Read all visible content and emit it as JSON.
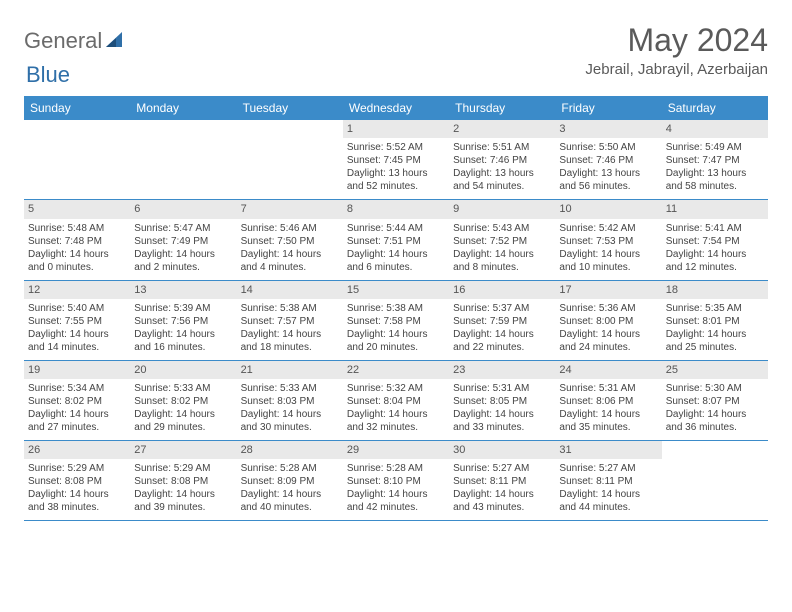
{
  "logo": {
    "word1": "General",
    "word2": "Blue"
  },
  "title": "May 2024",
  "location": "Jebrail, Jabrayil, Azerbaijan",
  "day_names": [
    "Sunday",
    "Monday",
    "Tuesday",
    "Wednesday",
    "Thursday",
    "Friday",
    "Saturday"
  ],
  "colors": {
    "header_bg": "#3b8bc9",
    "header_text": "#ffffff",
    "rule": "#3b8bc9",
    "daynum_bg": "#e9e9e9",
    "text": "#444444",
    "title_text": "#5a5a5a",
    "logo_text": "#6b6b6b"
  },
  "weeks": [
    [
      null,
      null,
      null,
      {
        "n": "1",
        "sr": "Sunrise: 5:52 AM",
        "ss": "Sunset: 7:45 PM",
        "d1": "Daylight: 13 hours",
        "d2": "and 52 minutes."
      },
      {
        "n": "2",
        "sr": "Sunrise: 5:51 AM",
        "ss": "Sunset: 7:46 PM",
        "d1": "Daylight: 13 hours",
        "d2": "and 54 minutes."
      },
      {
        "n": "3",
        "sr": "Sunrise: 5:50 AM",
        "ss": "Sunset: 7:46 PM",
        "d1": "Daylight: 13 hours",
        "d2": "and 56 minutes."
      },
      {
        "n": "4",
        "sr": "Sunrise: 5:49 AM",
        "ss": "Sunset: 7:47 PM",
        "d1": "Daylight: 13 hours",
        "d2": "and 58 minutes."
      }
    ],
    [
      {
        "n": "5",
        "sr": "Sunrise: 5:48 AM",
        "ss": "Sunset: 7:48 PM",
        "d1": "Daylight: 14 hours",
        "d2": "and 0 minutes."
      },
      {
        "n": "6",
        "sr": "Sunrise: 5:47 AM",
        "ss": "Sunset: 7:49 PM",
        "d1": "Daylight: 14 hours",
        "d2": "and 2 minutes."
      },
      {
        "n": "7",
        "sr": "Sunrise: 5:46 AM",
        "ss": "Sunset: 7:50 PM",
        "d1": "Daylight: 14 hours",
        "d2": "and 4 minutes."
      },
      {
        "n": "8",
        "sr": "Sunrise: 5:44 AM",
        "ss": "Sunset: 7:51 PM",
        "d1": "Daylight: 14 hours",
        "d2": "and 6 minutes."
      },
      {
        "n": "9",
        "sr": "Sunrise: 5:43 AM",
        "ss": "Sunset: 7:52 PM",
        "d1": "Daylight: 14 hours",
        "d2": "and 8 minutes."
      },
      {
        "n": "10",
        "sr": "Sunrise: 5:42 AM",
        "ss": "Sunset: 7:53 PM",
        "d1": "Daylight: 14 hours",
        "d2": "and 10 minutes."
      },
      {
        "n": "11",
        "sr": "Sunrise: 5:41 AM",
        "ss": "Sunset: 7:54 PM",
        "d1": "Daylight: 14 hours",
        "d2": "and 12 minutes."
      }
    ],
    [
      {
        "n": "12",
        "sr": "Sunrise: 5:40 AM",
        "ss": "Sunset: 7:55 PM",
        "d1": "Daylight: 14 hours",
        "d2": "and 14 minutes."
      },
      {
        "n": "13",
        "sr": "Sunrise: 5:39 AM",
        "ss": "Sunset: 7:56 PM",
        "d1": "Daylight: 14 hours",
        "d2": "and 16 minutes."
      },
      {
        "n": "14",
        "sr": "Sunrise: 5:38 AM",
        "ss": "Sunset: 7:57 PM",
        "d1": "Daylight: 14 hours",
        "d2": "and 18 minutes."
      },
      {
        "n": "15",
        "sr": "Sunrise: 5:38 AM",
        "ss": "Sunset: 7:58 PM",
        "d1": "Daylight: 14 hours",
        "d2": "and 20 minutes."
      },
      {
        "n": "16",
        "sr": "Sunrise: 5:37 AM",
        "ss": "Sunset: 7:59 PM",
        "d1": "Daylight: 14 hours",
        "d2": "and 22 minutes."
      },
      {
        "n": "17",
        "sr": "Sunrise: 5:36 AM",
        "ss": "Sunset: 8:00 PM",
        "d1": "Daylight: 14 hours",
        "d2": "and 24 minutes."
      },
      {
        "n": "18",
        "sr": "Sunrise: 5:35 AM",
        "ss": "Sunset: 8:01 PM",
        "d1": "Daylight: 14 hours",
        "d2": "and 25 minutes."
      }
    ],
    [
      {
        "n": "19",
        "sr": "Sunrise: 5:34 AM",
        "ss": "Sunset: 8:02 PM",
        "d1": "Daylight: 14 hours",
        "d2": "and 27 minutes."
      },
      {
        "n": "20",
        "sr": "Sunrise: 5:33 AM",
        "ss": "Sunset: 8:02 PM",
        "d1": "Daylight: 14 hours",
        "d2": "and 29 minutes."
      },
      {
        "n": "21",
        "sr": "Sunrise: 5:33 AM",
        "ss": "Sunset: 8:03 PM",
        "d1": "Daylight: 14 hours",
        "d2": "and 30 minutes."
      },
      {
        "n": "22",
        "sr": "Sunrise: 5:32 AM",
        "ss": "Sunset: 8:04 PM",
        "d1": "Daylight: 14 hours",
        "d2": "and 32 minutes."
      },
      {
        "n": "23",
        "sr": "Sunrise: 5:31 AM",
        "ss": "Sunset: 8:05 PM",
        "d1": "Daylight: 14 hours",
        "d2": "and 33 minutes."
      },
      {
        "n": "24",
        "sr": "Sunrise: 5:31 AM",
        "ss": "Sunset: 8:06 PM",
        "d1": "Daylight: 14 hours",
        "d2": "and 35 minutes."
      },
      {
        "n": "25",
        "sr": "Sunrise: 5:30 AM",
        "ss": "Sunset: 8:07 PM",
        "d1": "Daylight: 14 hours",
        "d2": "and 36 minutes."
      }
    ],
    [
      {
        "n": "26",
        "sr": "Sunrise: 5:29 AM",
        "ss": "Sunset: 8:08 PM",
        "d1": "Daylight: 14 hours",
        "d2": "and 38 minutes."
      },
      {
        "n": "27",
        "sr": "Sunrise: 5:29 AM",
        "ss": "Sunset: 8:08 PM",
        "d1": "Daylight: 14 hours",
        "d2": "and 39 minutes."
      },
      {
        "n": "28",
        "sr": "Sunrise: 5:28 AM",
        "ss": "Sunset: 8:09 PM",
        "d1": "Daylight: 14 hours",
        "d2": "and 40 minutes."
      },
      {
        "n": "29",
        "sr": "Sunrise: 5:28 AM",
        "ss": "Sunset: 8:10 PM",
        "d1": "Daylight: 14 hours",
        "d2": "and 42 minutes."
      },
      {
        "n": "30",
        "sr": "Sunrise: 5:27 AM",
        "ss": "Sunset: 8:11 PM",
        "d1": "Daylight: 14 hours",
        "d2": "and 43 minutes."
      },
      {
        "n": "31",
        "sr": "Sunrise: 5:27 AM",
        "ss": "Sunset: 8:11 PM",
        "d1": "Daylight: 14 hours",
        "d2": "and 44 minutes."
      },
      null
    ]
  ]
}
